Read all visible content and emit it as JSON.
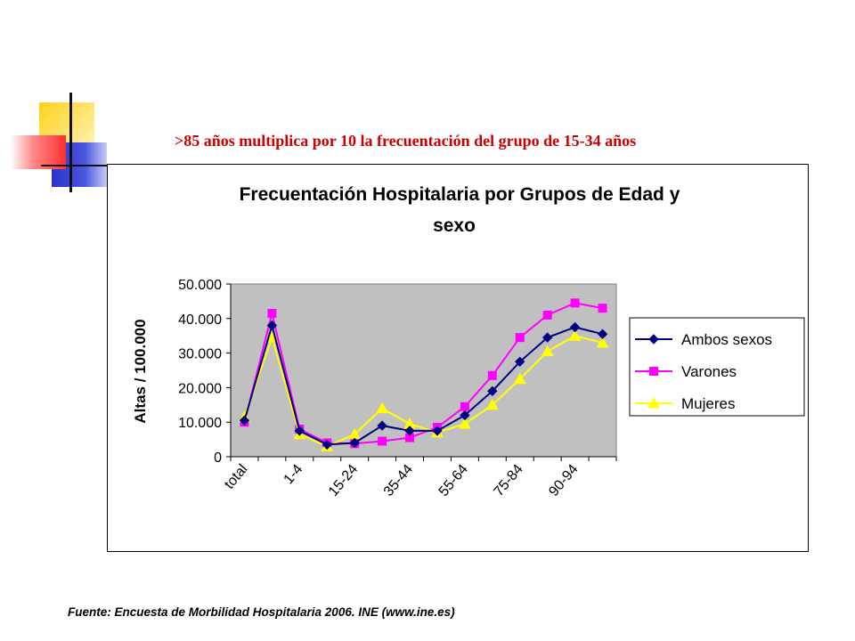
{
  "headline": ">85 años multiplica por 10  la frecuentación del grupo de  15-34 años",
  "source": "Fuente: Encuesta de Morbilidad Hospitalaria 2006. INE (www.ine.es)",
  "colors": {
    "headline": "#cc0000",
    "plot_bg": "#c0c0c0",
    "ambos": "#000080",
    "varones": "#ff00ff",
    "mujeres": "#ffff00"
  },
  "chart_data": {
    "type": "line",
    "title_line1": "Frecuentación Hospitalaria por Grupos de Edad y",
    "title_line2": "sexo",
    "ylabel": "Altas / 100.000",
    "ylim": [
      0,
      50000
    ],
    "yticks": [
      0,
      10000,
      20000,
      30000,
      40000,
      50000
    ],
    "ytick_labels": [
      "0",
      "10.000",
      "20.000",
      "30.000",
      "40.000",
      "50.000"
    ],
    "x_count": 14,
    "x_tick_labels": [
      {
        "index": 0,
        "label": "total"
      },
      {
        "index": 2,
        "label": "1-4"
      },
      {
        "index": 4,
        "label": "15-24"
      },
      {
        "index": 6,
        "label": "35-44"
      },
      {
        "index": 8,
        "label": "55-64"
      },
      {
        "index": 10,
        "label": "75-84"
      },
      {
        "index": 12,
        "label": "90-94"
      }
    ],
    "grid": false,
    "legend_position": "right",
    "series": [
      {
        "name": "Ambos sexos",
        "marker": "diamond",
        "color": "#000080",
        "values": [
          10500,
          38000,
          7500,
          3500,
          4000,
          9000,
          7500,
          7500,
          12000,
          19000,
          27500,
          34500,
          37500,
          35500
        ]
      },
      {
        "name": "Varones",
        "marker": "square",
        "color": "#ff00ff",
        "values": [
          10000,
          41500,
          8000,
          4000,
          3800,
          4500,
          5500,
          8500,
          14500,
          23500,
          34500,
          41000,
          44500,
          43000
        ]
      },
      {
        "name": "Mujeres",
        "marker": "triangle",
        "color": "#ffff00",
        "values": [
          11500,
          34500,
          6500,
          3000,
          6500,
          14000,
          9500,
          7000,
          9500,
          15000,
          22500,
          30500,
          35000,
          33000
        ]
      }
    ]
  }
}
